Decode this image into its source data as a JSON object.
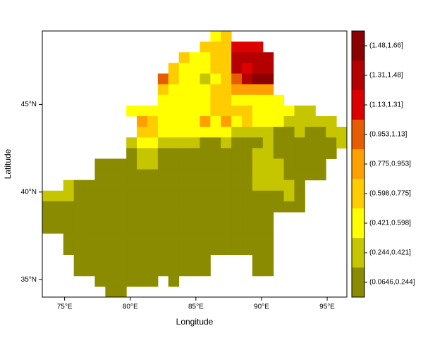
{
  "chart_data": {
    "type": "heatmap",
    "xlabel": "Longitude",
    "ylabel": "Latitude",
    "xlim": [
      73.3,
      96.5
    ],
    "ylim": [
      34.0,
      49.2
    ],
    "xticks": [
      {
        "value": 75,
        "label": "75°E"
      },
      {
        "value": 80,
        "label": "80°E"
      },
      {
        "value": 85,
        "label": "85°E"
      },
      {
        "value": 90,
        "label": "90°E"
      },
      {
        "value": 95,
        "label": "95°E"
      }
    ],
    "yticks": [
      {
        "value": 35,
        "label": "35°N"
      },
      {
        "value": 40,
        "label": "40°N"
      },
      {
        "value": 45,
        "label": "45°N"
      }
    ],
    "colorbar": {
      "breaks": [
        0.0646,
        0.244,
        0.421,
        0.598,
        0.775,
        0.953,
        1.13,
        1.31,
        1.48,
        1.66
      ],
      "labels": [
        "(0.0646,0.244]",
        "(0.244,0.421]",
        "(0.421,0.598]",
        "(0.598,0.775]",
        "(0.775,0.953]",
        "(0.953,1.13]",
        "(1.13,1.31]",
        "(1.31,1.48]",
        "(1.48,1.66]"
      ],
      "colors": [
        "#8b8b00",
        "#c5c500",
        "#ffff00",
        "#ffcc00",
        "#ffa000",
        "#e65c00",
        "#dc0000",
        "#b40000",
        "#8b0000"
      ]
    },
    "z": [
      [
        null,
        null,
        null,
        null,
        null,
        null,
        null,
        null,
        null,
        null,
        null,
        null,
        null,
        null,
        null,
        null,
        0.51,
        0.69,
        null,
        null,
        null,
        null,
        null,
        null,
        null,
        null,
        null,
        null,
        null
      ],
      [
        null,
        null,
        null,
        null,
        null,
        null,
        null,
        null,
        null,
        null,
        null,
        null,
        null,
        null,
        null,
        0.69,
        0.69,
        0.69,
        1.22,
        1.22,
        1.22,
        null,
        null,
        null,
        null,
        null,
        null,
        null,
        null
      ],
      [
        null,
        null,
        null,
        null,
        null,
        null,
        null,
        null,
        null,
        null,
        null,
        null,
        null,
        0.69,
        0.51,
        0.51,
        0.69,
        0.69,
        1.4,
        1.4,
        1.4,
        1.4,
        null,
        null,
        null,
        null,
        null,
        null,
        null
      ],
      [
        null,
        null,
        null,
        null,
        null,
        null,
        null,
        null,
        null,
        null,
        null,
        null,
        0.69,
        0.51,
        0.51,
        0.51,
        0.69,
        0.69,
        1.4,
        1.22,
        1.4,
        1.4,
        null,
        null,
        null,
        null,
        null,
        null,
        null
      ],
      [
        null,
        null,
        null,
        null,
        null,
        null,
        null,
        null,
        null,
        null,
        null,
        1.04,
        0.69,
        0.51,
        0.51,
        0.33,
        0.51,
        0.69,
        1.04,
        1.4,
        1.57,
        1.57,
        null,
        null,
        null,
        null,
        null,
        null,
        null
      ],
      [
        null,
        null,
        null,
        null,
        null,
        null,
        null,
        null,
        null,
        null,
        null,
        0.69,
        0.51,
        0.51,
        0.51,
        0.51,
        0.69,
        0.69,
        0.86,
        0.86,
        0.86,
        0.86,
        null,
        null,
        null,
        null,
        null,
        null,
        null
      ],
      [
        null,
        null,
        null,
        null,
        null,
        null,
        null,
        null,
        null,
        null,
        null,
        0.51,
        0.51,
        0.51,
        0.51,
        0.51,
        0.69,
        0.69,
        0.51,
        0.51,
        0.51,
        0.51,
        0.51,
        null,
        null,
        null,
        null,
        null,
        null
      ],
      [
        null,
        null,
        null,
        null,
        null,
        null,
        null,
        null,
        0.51,
        0.51,
        0.51,
        0.51,
        0.51,
        0.51,
        0.51,
        0.51,
        0.69,
        0.69,
        0.69,
        0.69,
        0.51,
        0.51,
        0.51,
        0.51,
        0.33,
        0.33,
        null,
        null,
        null
      ],
      [
        null,
        null,
        null,
        null,
        null,
        null,
        null,
        null,
        null,
        0.86,
        0.69,
        0.51,
        0.51,
        0.51,
        0.51,
        0.86,
        0.51,
        0.86,
        0.51,
        0.69,
        0.51,
        0.51,
        0.51,
        0.33,
        0.33,
        0.33,
        0.33,
        0.33,
        null
      ],
      [
        null,
        null,
        null,
        null,
        null,
        null,
        null,
        null,
        null,
        0.69,
        0.69,
        0.51,
        0.51,
        0.51,
        0.51,
        0.51,
        0.51,
        0.51,
        0.33,
        0.33,
        0.33,
        0.33,
        0.15,
        0.15,
        0.33,
        0.15,
        0.15,
        0.33,
        0.33
      ],
      [
        null,
        null,
        null,
        null,
        null,
        null,
        null,
        null,
        0.33,
        0.51,
        0.51,
        0.33,
        0.33,
        0.33,
        0.33,
        0.15,
        0.15,
        0.33,
        0.15,
        0.15,
        0.15,
        0.33,
        0.15,
        0.15,
        0.15,
        0.15,
        0.15,
        0.15,
        0.33
      ],
      [
        null,
        null,
        null,
        null,
        null,
        null,
        null,
        null,
        0.15,
        0.33,
        0.33,
        0.15,
        0.15,
        0.15,
        0.15,
        0.15,
        0.15,
        0.15,
        0.15,
        0.15,
        0.33,
        0.33,
        0.15,
        0.15,
        0.15,
        0.15,
        0.15,
        0.15,
        null
      ],
      [
        null,
        null,
        null,
        null,
        null,
        0.15,
        0.15,
        0.15,
        0.15,
        0.33,
        0.33,
        0.15,
        0.15,
        0.15,
        0.15,
        0.15,
        0.15,
        0.15,
        0.15,
        0.15,
        0.33,
        0.33,
        0.33,
        0.15,
        0.15,
        0.15,
        0.15,
        null,
        null
      ],
      [
        null,
        null,
        null,
        null,
        null,
        0.15,
        0.15,
        0.15,
        0.15,
        0.15,
        0.15,
        0.15,
        0.15,
        0.15,
        0.15,
        0.15,
        0.15,
        0.15,
        0.15,
        0.15,
        0.33,
        0.33,
        0.33,
        0.15,
        0.15,
        0.15,
        0.15,
        null,
        null
      ],
      [
        null,
        null,
        0.33,
        0.15,
        0.15,
        0.15,
        0.15,
        0.15,
        0.15,
        0.15,
        0.15,
        0.15,
        0.15,
        0.15,
        0.15,
        0.15,
        0.15,
        0.15,
        0.15,
        0.15,
        0.33,
        0.33,
        0.33,
        0.33,
        0.15,
        null,
        null,
        null,
        null
      ],
      [
        0.33,
        0.33,
        0.33,
        0.15,
        0.15,
        0.15,
        0.15,
        0.15,
        0.15,
        0.15,
        0.15,
        0.15,
        0.15,
        0.15,
        0.15,
        0.15,
        0.15,
        0.15,
        0.15,
        0.15,
        0.15,
        0.15,
        0.15,
        0.33,
        0.15,
        null,
        null,
        null,
        null
      ],
      [
        0.15,
        0.15,
        0.15,
        0.15,
        0.15,
        0.15,
        0.15,
        0.15,
        0.15,
        0.15,
        0.15,
        0.15,
        0.15,
        0.15,
        0.15,
        0.15,
        0.15,
        0.15,
        0.15,
        0.15,
        0.15,
        0.15,
        0.15,
        0.15,
        0.15,
        null,
        null,
        null,
        null
      ],
      [
        0.15,
        0.15,
        0.15,
        0.15,
        0.15,
        0.15,
        0.15,
        0.15,
        0.15,
        0.15,
        0.15,
        0.15,
        0.15,
        0.15,
        0.15,
        0.15,
        0.15,
        0.15,
        0.15,
        0.15,
        0.15,
        0.15,
        null,
        null,
        null,
        null,
        null,
        null,
        null
      ],
      [
        0.15,
        0.15,
        0.15,
        0.15,
        0.15,
        0.15,
        0.15,
        0.15,
        0.15,
        0.15,
        0.15,
        0.15,
        0.15,
        0.15,
        0.15,
        0.15,
        0.15,
        0.15,
        0.15,
        0.15,
        0.15,
        0.15,
        null,
        null,
        null,
        null,
        null,
        null,
        null
      ],
      [
        null,
        null,
        0.15,
        0.15,
        0.15,
        0.15,
        0.15,
        0.15,
        0.15,
        0.15,
        0.15,
        0.15,
        0.15,
        0.15,
        0.15,
        0.15,
        0.15,
        0.15,
        0.15,
        0.15,
        0.15,
        0.15,
        null,
        null,
        null,
        null,
        null,
        null,
        null
      ],
      [
        null,
        null,
        0.15,
        0.15,
        0.15,
        0.15,
        0.15,
        0.15,
        0.15,
        0.15,
        0.15,
        0.15,
        0.15,
        0.15,
        0.15,
        0.15,
        0.15,
        0.15,
        0.15,
        0.15,
        0.15,
        0.15,
        null,
        null,
        null,
        null,
        null,
        null,
        null
      ],
      [
        null,
        null,
        null,
        0.15,
        0.15,
        0.15,
        0.15,
        0.15,
        0.15,
        0.15,
        0.15,
        0.15,
        0.15,
        0.15,
        0.15,
        0.15,
        null,
        null,
        null,
        null,
        0.15,
        0.15,
        null,
        null,
        null,
        null,
        null,
        null,
        null
      ],
      [
        null,
        null,
        null,
        0.15,
        0.15,
        0.15,
        0.15,
        0.15,
        0.15,
        0.15,
        0.15,
        0.15,
        0.15,
        0.15,
        0.15,
        0.15,
        null,
        null,
        null,
        null,
        0.15,
        0.15,
        null,
        null,
        null,
        null,
        null,
        null,
        null
      ],
      [
        null,
        null,
        null,
        null,
        null,
        0.15,
        0.15,
        0.15,
        0.15,
        0.15,
        0.15,
        null,
        0.15,
        null,
        null,
        null,
        null,
        null,
        null,
        null,
        null,
        null,
        null,
        null,
        null,
        null,
        null,
        null,
        null
      ],
      [
        null,
        null,
        null,
        null,
        null,
        null,
        0.15,
        0.15,
        null,
        null,
        null,
        null,
        null,
        null,
        null,
        null,
        null,
        null,
        null,
        null,
        null,
        null,
        null,
        null,
        null,
        null,
        null,
        null,
        null
      ]
    ]
  }
}
